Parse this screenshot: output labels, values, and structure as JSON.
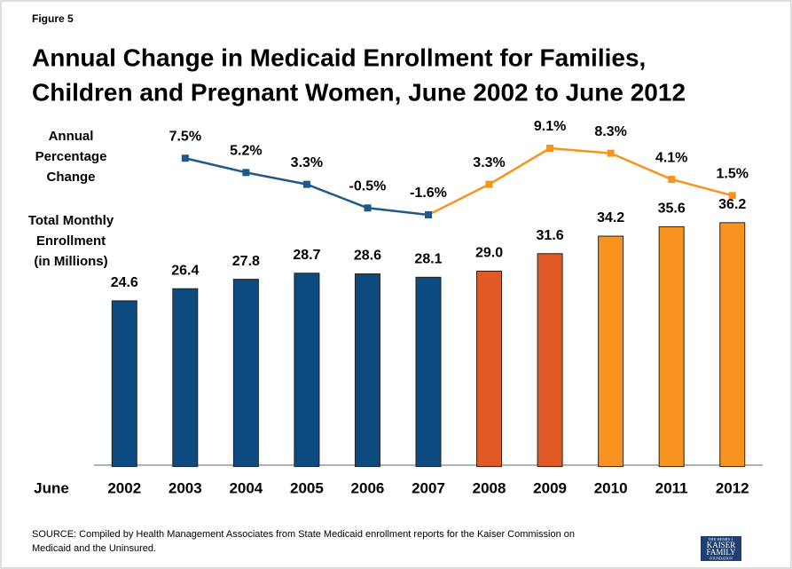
{
  "chart_data": {
    "type": "bar",
    "figure_label": "Figure 5",
    "title": [
      "Annual Change in Medicaid Enrollment for Families,",
      "Children and Pregnant Women, June 2002 to June 2012"
    ],
    "x_label": "June",
    "categories": [
      "2002",
      "2003",
      "2004",
      "2005",
      "2006",
      "2007",
      "2008",
      "2009",
      "2010",
      "2011",
      "2012"
    ],
    "ylim": [
      0,
      40
    ],
    "y2lim": [
      -2,
      10
    ],
    "series": [
      {
        "name": [
          "Total Monthly",
          "Enrollment",
          "(in Millions)"
        ],
        "values": [
          24.6,
          26.4,
          27.8,
          28.7,
          28.6,
          28.1,
          29.0,
          31.6,
          34.2,
          35.6,
          36.2
        ],
        "value_labels": [
          "24.6",
          "26.4",
          "27.8",
          "28.7",
          "28.6",
          "28.1",
          "29.0",
          "31.6",
          "34.2",
          "35.6",
          "36.2"
        ],
        "colors": [
          "#0d4a80",
          "#0d4a80",
          "#0d4a80",
          "#0d4a80",
          "#0d4a80",
          "#0d4a80",
          "#e05a25",
          "#e05a25",
          "#f7931e",
          "#f7931e",
          "#f7931e"
        ]
      },
      {
        "name": [
          "Annual",
          "Percentage",
          "Change"
        ],
        "type": "line",
        "axis": "y2",
        "values": [
          null,
          7.5,
          5.2,
          3.3,
          -0.5,
          -1.6,
          3.3,
          9.1,
          8.3,
          4.1,
          1.5
        ],
        "value_labels": [
          null,
          "7.5%",
          "5.2%",
          "3.3%",
          "-0.5%",
          "-1.6%",
          "3.3%",
          "9.1%",
          "8.3%",
          "4.1%",
          "1.5%"
        ],
        "colors": [
          null,
          "#1f5a8a",
          "#1f5a8a",
          "#1f5a8a",
          "#1f5a8a",
          "#1f5a8a",
          "#f7931e",
          "#f7931e",
          "#f7931e",
          "#f7931e",
          "#f7931e"
        ]
      }
    ],
    "source": [
      "SOURCE: Compiled by Health Management Associates from State Medicaid enrollment reports for the Kaiser Commission on",
      "Medicaid and the Uninsured."
    ],
    "logo": [
      "THE HENRY J.",
      "KAISER",
      "FAMILY",
      "FOUNDATION"
    ]
  }
}
